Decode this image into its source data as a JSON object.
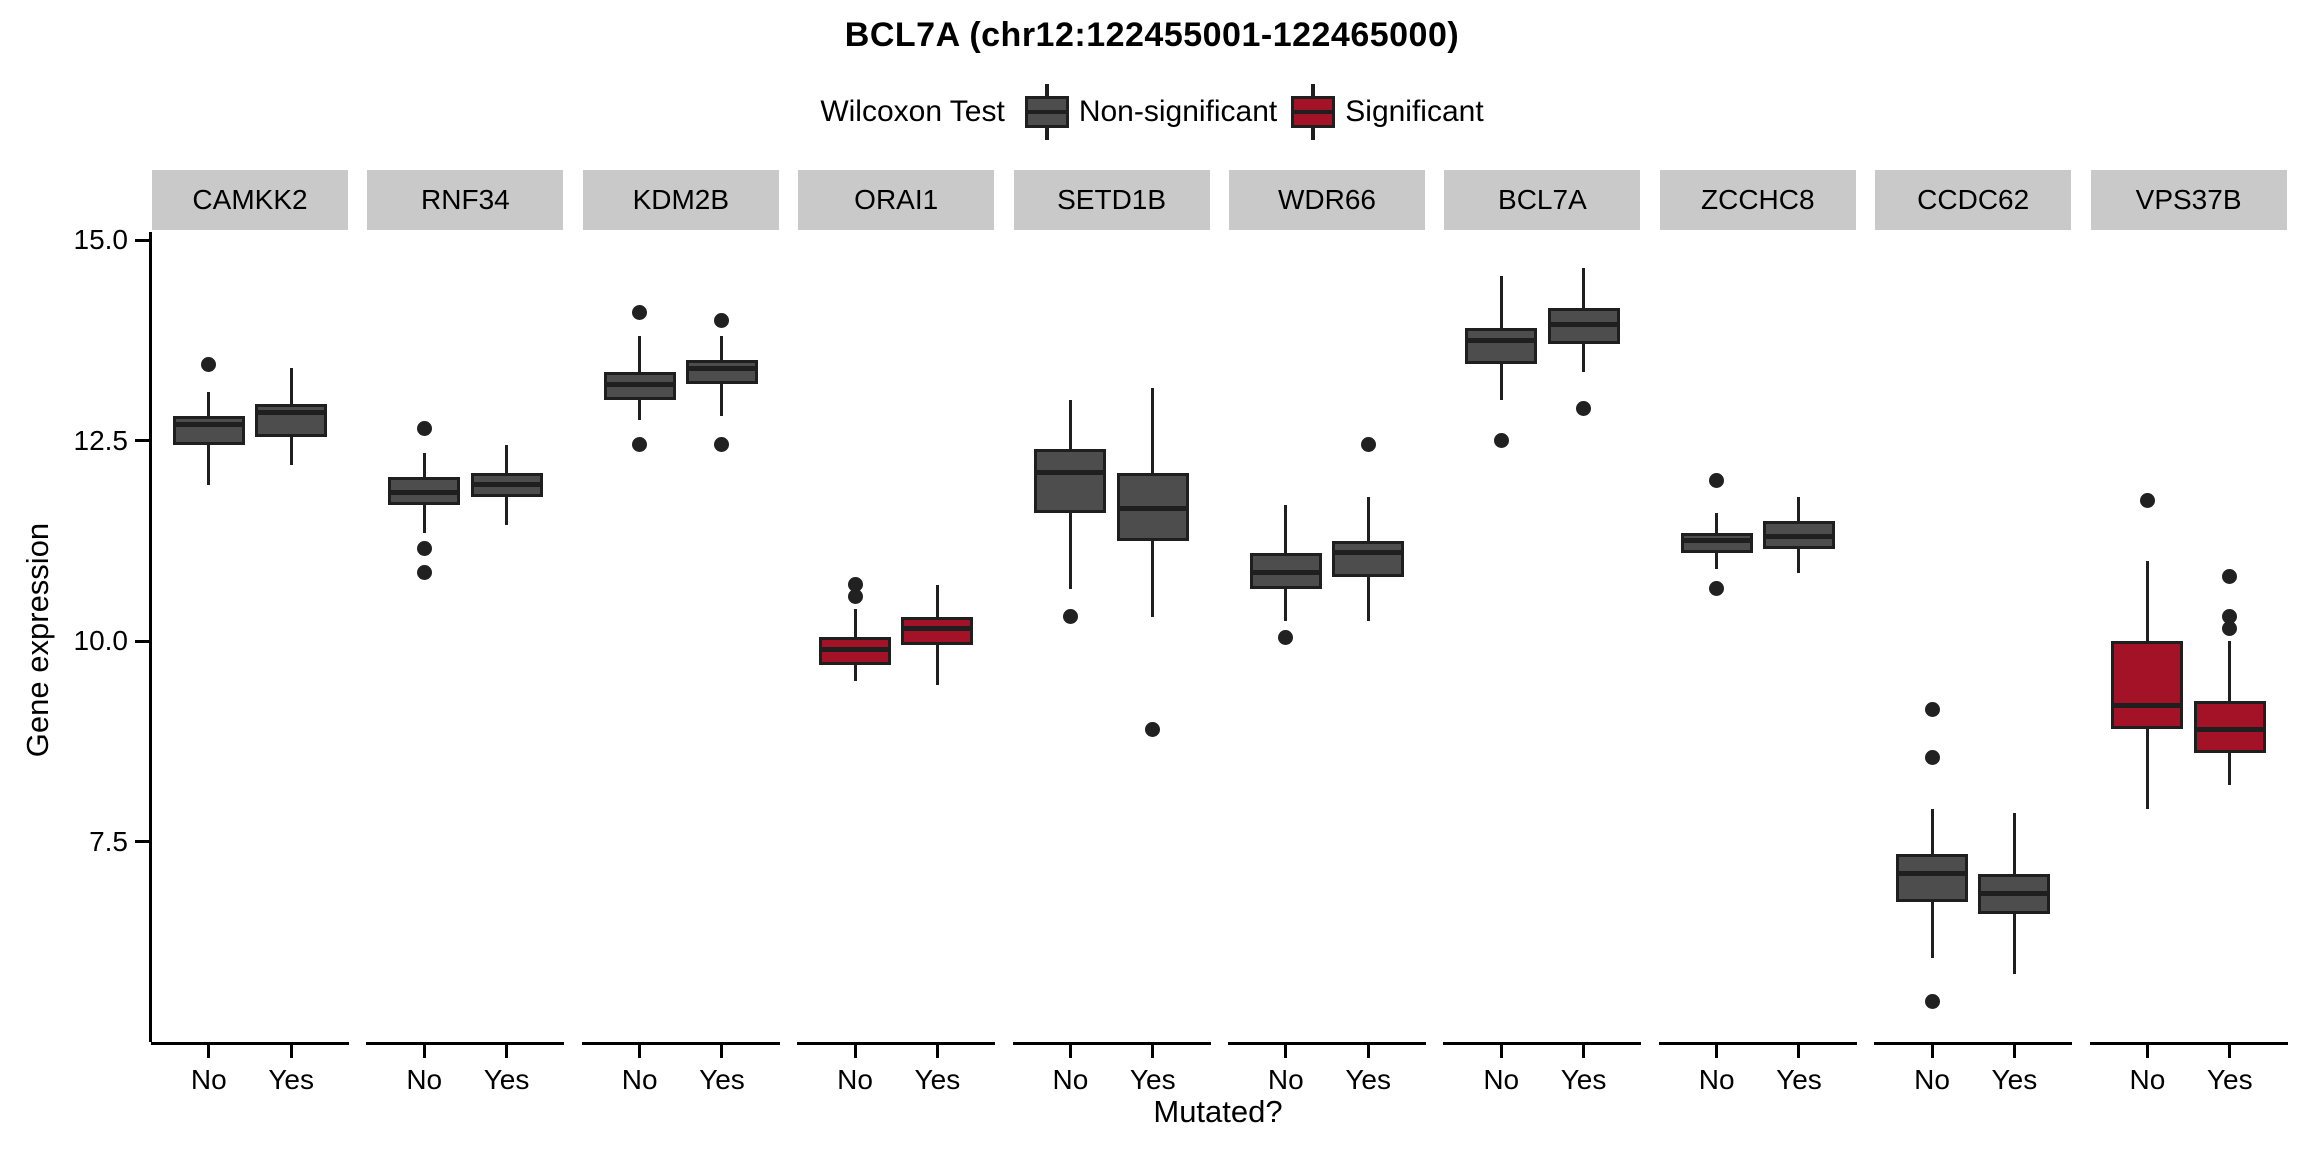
{
  "title": "BCL7A (chr12:122455001-122465000)",
  "legend": {
    "title": "Wilcoxon Test",
    "items": [
      {
        "label": "Non-significant",
        "color": "#4D4D4D"
      },
      {
        "label": "Significant",
        "color": "#A41228"
      }
    ]
  },
  "axes": {
    "x_title": "Mutated?",
    "y_title": "Gene expression",
    "x_categories": [
      "No",
      "Yes"
    ],
    "y_ticks": [
      {
        "value": 15.0,
        "label": "15.0"
      },
      {
        "value": 12.5,
        "label": "12.5"
      },
      {
        "value": 10.0,
        "label": "10.0"
      },
      {
        "value": 7.5,
        "label": "7.5"
      }
    ]
  },
  "colors": {
    "non_significant_fill": "#4D4D4D",
    "significant_fill": "#A41228",
    "box_border": "#1F1F1F",
    "median": "#1F1F1F",
    "whisker": "#1F1F1F",
    "outlier": "#212121",
    "strip_bg": "#C9C9C9",
    "axis_line": "#000000"
  },
  "chart_data": {
    "type": "boxplot",
    "title": "BCL7A (chr12:122455001-122465000)",
    "xlabel": "Mutated?",
    "ylabel": "Gene expression",
    "ylim": [
      5.0,
      15.1
    ],
    "y_tick_values": [
      15.0,
      12.5,
      10.0,
      7.5
    ],
    "grid": false,
    "legend_position": "top",
    "categories": [
      "No",
      "Yes"
    ],
    "facets": [
      {
        "gene": "CAMKK2",
        "significant": false,
        "groups": [
          {
            "x": "No",
            "low": 11.95,
            "q1": 12.45,
            "median": 12.7,
            "q3": 12.8,
            "high": 13.1,
            "outliers": [
              13.45
            ]
          },
          {
            "x": "Yes",
            "low": 12.2,
            "q1": 12.55,
            "median": 12.85,
            "q3": 12.95,
            "high": 13.4,
            "outliers": []
          }
        ]
      },
      {
        "gene": "RNF34",
        "significant": false,
        "groups": [
          {
            "x": "No",
            "low": 11.35,
            "q1": 11.7,
            "median": 11.85,
            "q3": 12.05,
            "high": 12.35,
            "outliers": [
              12.65,
              11.15,
              10.85
            ]
          },
          {
            "x": "Yes",
            "low": 11.45,
            "q1": 11.8,
            "median": 11.95,
            "q3": 12.1,
            "high": 12.45,
            "outliers": []
          }
        ]
      },
      {
        "gene": "KDM2B",
        "significant": false,
        "groups": [
          {
            "x": "No",
            "low": 12.75,
            "q1": 13.0,
            "median": 13.2,
            "q3": 13.35,
            "high": 13.8,
            "outliers": [
              14.1,
              12.45
            ]
          },
          {
            "x": "Yes",
            "low": 12.8,
            "q1": 13.2,
            "median": 13.4,
            "q3": 13.5,
            "high": 13.8,
            "outliers": [
              14.0,
              12.45
            ]
          }
        ]
      },
      {
        "gene": "ORAI1",
        "significant": true,
        "groups": [
          {
            "x": "No",
            "low": 9.5,
            "q1": 9.7,
            "median": 9.9,
            "q3": 10.05,
            "high": 10.4,
            "outliers": [
              10.7,
              10.55
            ]
          },
          {
            "x": "Yes",
            "low": 9.45,
            "q1": 9.95,
            "median": 10.15,
            "q3": 10.3,
            "high": 10.7,
            "outliers": []
          }
        ]
      },
      {
        "gene": "SETD1B",
        "significant": false,
        "groups": [
          {
            "x": "No",
            "low": 10.65,
            "q1": 11.6,
            "median": 12.1,
            "q3": 12.4,
            "high": 13.0,
            "outliers": [
              10.3
            ]
          },
          {
            "x": "Yes",
            "low": 10.3,
            "q1": 11.25,
            "median": 11.65,
            "q3": 12.1,
            "high": 13.15,
            "outliers": [
              8.9
            ]
          }
        ]
      },
      {
        "gene": "WDR66",
        "significant": false,
        "groups": [
          {
            "x": "No",
            "low": 10.25,
            "q1": 10.65,
            "median": 10.85,
            "q3": 11.1,
            "high": 11.7,
            "outliers": [
              10.05
            ]
          },
          {
            "x": "Yes",
            "low": 10.25,
            "q1": 10.8,
            "median": 11.1,
            "q3": 11.25,
            "high": 11.8,
            "outliers": [
              12.45
            ]
          }
        ]
      },
      {
        "gene": "BCL7A",
        "significant": false,
        "groups": [
          {
            "x": "No",
            "low": 13.0,
            "q1": 13.45,
            "median": 13.75,
            "q3": 13.9,
            "high": 14.55,
            "outliers": [
              12.5
            ]
          },
          {
            "x": "Yes",
            "low": 13.35,
            "q1": 13.7,
            "median": 13.95,
            "q3": 14.15,
            "high": 14.65,
            "outliers": [
              12.9
            ]
          }
        ]
      },
      {
        "gene": "ZCCHC8",
        "significant": false,
        "groups": [
          {
            "x": "No",
            "low": 10.9,
            "q1": 11.1,
            "median": 11.25,
            "q3": 11.35,
            "high": 11.6,
            "outliers": [
              12.0,
              10.65
            ]
          },
          {
            "x": "Yes",
            "low": 10.85,
            "q1": 11.15,
            "median": 11.3,
            "q3": 11.5,
            "high": 11.8,
            "outliers": []
          }
        ]
      },
      {
        "gene": "CCDC62",
        "significant": false,
        "groups": [
          {
            "x": "No",
            "low": 6.05,
            "q1": 6.75,
            "median": 7.1,
            "q3": 7.35,
            "high": 7.9,
            "outliers": [
              9.15,
              8.55,
              5.5
            ]
          },
          {
            "x": "Yes",
            "low": 5.85,
            "q1": 6.6,
            "median": 6.85,
            "q3": 7.1,
            "high": 7.85,
            "outliers": []
          }
        ]
      },
      {
        "gene": "VPS37B",
        "significant": true,
        "groups": [
          {
            "x": "No",
            "low": 7.9,
            "q1": 8.9,
            "median": 9.2,
            "q3": 10.0,
            "high": 11.0,
            "outliers": [
              11.75
            ]
          },
          {
            "x": "Yes",
            "low": 8.2,
            "q1": 8.6,
            "median": 8.9,
            "q3": 9.25,
            "high": 10.0,
            "outliers": [
              10.8,
              10.3,
              10.15
            ]
          }
        ]
      }
    ]
  }
}
